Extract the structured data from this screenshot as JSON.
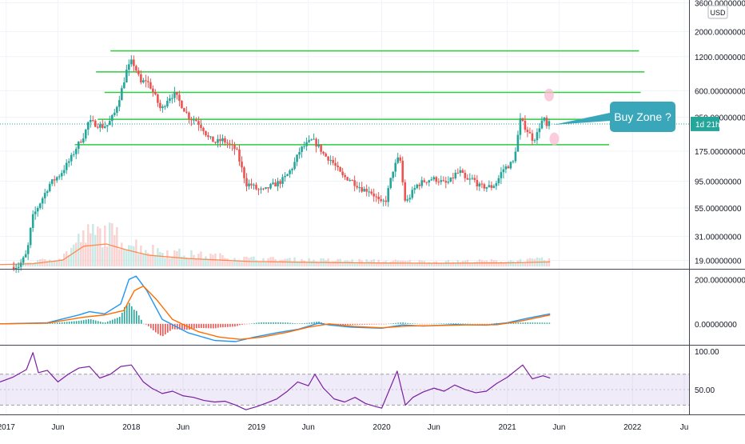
{
  "chart_data": [
    {
      "type": "candlestick",
      "panel": "price",
      "scale": "log",
      "currency_label": "USD",
      "countdown_badge": "1d 21h",
      "ylim": [
        16,
        3800
      ],
      "y_ticks": [
        "3600.00000000",
        "2000.00000000",
        "1200.00000000",
        "600.00000000",
        "350.00000000",
        "175.00000000",
        "95.00000000",
        "55.00000000",
        "31.00000000",
        "19.00000000"
      ],
      "y_tick_values": [
        3600,
        2000,
        1200,
        600,
        350,
        175,
        95,
        55,
        31,
        19
      ],
      "x_ticks": [
        "2017",
        "Jun",
        "2018",
        "Jun",
        "2019",
        "Jun",
        "2020",
        "Jun",
        "2021",
        "Jun",
        "2022",
        "Ju"
      ],
      "x_tick_dates": [
        "2017-01-01",
        "2017-06-01",
        "2018-01-01",
        "2018-06-01",
        "2019-01-01",
        "2019-06-01",
        "2020-01-01",
        "2020-06-01",
        "2021-01-01",
        "2021-06-01",
        "2022-01-01",
        "2022-06-01"
      ],
      "xlim": [
        "2016-12-14",
        "2022-06-15"
      ],
      "price_path": [
        [
          "2016-12-14",
          16
        ],
        [
          "2017-02-15",
          17
        ],
        [
          "2017-03-10",
          22
        ],
        [
          "2017-03-25",
          45
        ],
        [
          "2017-04-15",
          60
        ],
        [
          "2017-05-15",
          90
        ],
        [
          "2017-06-15",
          110
        ],
        [
          "2017-07-15",
          150
        ],
        [
          "2017-08-01",
          190
        ],
        [
          "2017-08-25",
          250
        ],
        [
          "2017-09-05",
          320
        ],
        [
          "2017-09-20",
          310
        ],
        [
          "2017-10-15",
          290
        ],
        [
          "2017-11-01",
          300
        ],
        [
          "2017-11-20",
          380
        ],
        [
          "2017-12-10",
          600
        ],
        [
          "2017-12-25",
          900
        ],
        [
          "2018-01-10",
          1100
        ],
        [
          "2018-01-20",
          950
        ],
        [
          "2018-02-05",
          700
        ],
        [
          "2018-02-20",
          750
        ],
        [
          "2018-03-05",
          650
        ],
        [
          "2018-03-20",
          520
        ],
        [
          "2018-04-05",
          400
        ],
        [
          "2018-04-25",
          520
        ],
        [
          "2018-05-15",
          560
        ],
        [
          "2018-06-05",
          440
        ],
        [
          "2018-06-25",
          350
        ],
        [
          "2018-07-15",
          330
        ],
        [
          "2018-08-05",
          280
        ],
        [
          "2018-08-20",
          230
        ],
        [
          "2018-09-10",
          210
        ],
        [
          "2018-10-01",
          220
        ],
        [
          "2018-10-20",
          200
        ],
        [
          "2018-11-10",
          180
        ],
        [
          "2018-11-25",
          125
        ],
        [
          "2018-12-10",
          90
        ],
        [
          "2018-12-25",
          88
        ],
        [
          "2019-01-10",
          80
        ],
        [
          "2019-01-30",
          78
        ],
        [
          "2019-02-15",
          85
        ],
        [
          "2019-03-05",
          90
        ],
        [
          "2019-03-20",
          95
        ],
        [
          "2019-04-05",
          105
        ],
        [
          "2019-04-25",
          130
        ],
        [
          "2019-05-15",
          180
        ],
        [
          "2019-06-01",
          200
        ],
        [
          "2019-06-20",
          220
        ],
        [
          "2019-07-10",
          190
        ],
        [
          "2019-07-25",
          160
        ],
        [
          "2019-08-10",
          150
        ],
        [
          "2019-08-25",
          130
        ],
        [
          "2019-09-15",
          105
        ],
        [
          "2019-10-05",
          100
        ],
        [
          "2019-10-25",
          90
        ],
        [
          "2019-11-15",
          80
        ],
        [
          "2019-12-01",
          80
        ],
        [
          "2019-12-20",
          70
        ],
        [
          "2020-01-05",
          60
        ],
        [
          "2020-01-20",
          65
        ],
        [
          "2020-02-10",
          120
        ],
        [
          "2020-02-25",
          150
        ],
        [
          "2020-03-05",
          140
        ],
        [
          "2020-03-12",
          68
        ],
        [
          "2020-03-20",
          62
        ],
        [
          "2020-04-05",
          75
        ],
        [
          "2020-04-20",
          88
        ],
        [
          "2020-05-10",
          95
        ],
        [
          "2020-06-01",
          100
        ],
        [
          "2020-06-20",
          98
        ],
        [
          "2020-07-10",
          90
        ],
        [
          "2020-07-25",
          95
        ],
        [
          "2020-08-10",
          110
        ],
        [
          "2020-08-25",
          115
        ],
        [
          "2020-09-10",
          95
        ],
        [
          "2020-09-30",
          100
        ],
        [
          "2020-10-20",
          85
        ],
        [
          "2020-11-10",
          85
        ],
        [
          "2020-11-25",
          85
        ],
        [
          "2020-12-10",
          95
        ],
        [
          "2020-12-25",
          120
        ],
        [
          "2021-01-10",
          130
        ],
        [
          "2021-01-25",
          140
        ],
        [
          "2021-02-05",
          210
        ],
        [
          "2021-02-15",
          330
        ],
        [
          "2021-02-25",
          300
        ],
        [
          "2021-03-10",
          260
        ],
        [
          "2021-03-25",
          220
        ],
        [
          "2021-04-05",
          250
        ],
        [
          "2021-04-15",
          310
        ],
        [
          "2021-04-25",
          340
        ],
        [
          "2021-05-02",
          280
        ],
        [
          "2021-05-06",
          305
        ]
      ],
      "horizontal_levels": [
        {
          "value": 1350,
          "from": "2017-11-01",
          "to": "2022-01-20"
        },
        {
          "value": 880,
          "from": "2017-09-20",
          "to": "2022-02-05"
        },
        {
          "value": 580,
          "from": "2017-10-15",
          "to": "2022-01-25"
        },
        {
          "value": 335,
          "from": "2017-09-25",
          "to": "2021-10-10"
        },
        {
          "value": 200,
          "from": "2017-07-20",
          "to": "2021-10-25"
        }
      ],
      "annotation": {
        "text": "Buy Zone ?",
        "points_to": [
          "2021-05-06",
          300
        ]
      },
      "highlight_ovals": [
        [
          "2021-05-03",
          550
        ],
        [
          "2021-05-18",
          225
        ]
      ],
      "volume_ma_path": [
        [
          "2016-12-14",
          0.08
        ],
        [
          "2017-03-20",
          0.12
        ],
        [
          "2017-06-15",
          0.28
        ],
        [
          "2017-08-15",
          0.9
        ],
        [
          "2017-10-20",
          1.0
        ],
        [
          "2017-12-15",
          0.75
        ],
        [
          "2018-02-20",
          0.5
        ],
        [
          "2018-06-15",
          0.35
        ],
        [
          "2018-12-15",
          0.22
        ],
        [
          "2019-06-15",
          0.18
        ],
        [
          "2020-01-15",
          0.15
        ],
        [
          "2020-06-15",
          0.14
        ],
        [
          "2021-01-15",
          0.16
        ],
        [
          "2021-05-06",
          0.2
        ]
      ]
    },
    {
      "type": "line",
      "panel": "macd",
      "y_ticks": [
        "200.00000000",
        "0.00000000"
      ],
      "y_tick_values": [
        200,
        0
      ],
      "ylim": [
        -80,
        230
      ],
      "series": [
        {
          "role": "macd",
          "color": "#2196f3",
          "path": [
            [
              "2016-12-14",
              0
            ],
            [
              "2017-05-01",
              5
            ],
            [
              "2017-08-01",
              40
            ],
            [
              "2017-09-01",
              55
            ],
            [
              "2017-10-15",
              45
            ],
            [
              "2017-12-01",
              90
            ],
            [
              "2017-12-25",
              200
            ],
            [
              "2018-01-15",
              215
            ],
            [
              "2018-02-15",
              150
            ],
            [
              "2018-04-01",
              20
            ],
            [
              "2018-06-15",
              -40
            ],
            [
              "2018-09-01",
              -75
            ],
            [
              "2018-11-01",
              -80
            ],
            [
              "2018-12-25",
              -60
            ],
            [
              "2019-03-01",
              -40
            ],
            [
              "2019-05-01",
              -25
            ],
            [
              "2019-07-01",
              3
            ],
            [
              "2019-08-01",
              -5
            ],
            [
              "2019-10-01",
              -15
            ],
            [
              "2020-01-01",
              -20
            ],
            [
              "2020-03-01",
              -5
            ],
            [
              "2020-05-01",
              -10
            ],
            [
              "2020-08-01",
              -3
            ],
            [
              "2020-11-01",
              -6
            ],
            [
              "2021-01-01",
              5
            ],
            [
              "2021-03-01",
              25
            ],
            [
              "2021-05-06",
              45
            ]
          ]
        },
        {
          "role": "signal",
          "color": "#ff6d00",
          "path": [
            [
              "2016-12-14",
              0
            ],
            [
              "2017-05-01",
              3
            ],
            [
              "2017-08-15",
              30
            ],
            [
              "2017-10-15",
              40
            ],
            [
              "2017-12-10",
              60
            ],
            [
              "2018-01-10",
              150
            ],
            [
              "2018-02-05",
              170
            ],
            [
              "2018-03-15",
              110
            ],
            [
              "2018-05-01",
              20
            ],
            [
              "2018-07-15",
              -35
            ],
            [
              "2018-09-15",
              -60
            ],
            [
              "2018-11-15",
              -70
            ],
            [
              "2019-01-15",
              -60
            ],
            [
              "2019-04-01",
              -38
            ],
            [
              "2019-06-01",
              -15
            ],
            [
              "2019-08-01",
              0
            ],
            [
              "2019-10-15",
              -12
            ],
            [
              "2020-01-01",
              -18
            ],
            [
              "2020-03-15",
              -10
            ],
            [
              "2020-06-01",
              -8
            ],
            [
              "2020-09-01",
              -5
            ],
            [
              "2020-12-01",
              -4
            ],
            [
              "2021-02-01",
              10
            ],
            [
              "2021-05-06",
              40
            ]
          ]
        }
      ]
    },
    {
      "type": "line",
      "panel": "rsi",
      "y_ticks": [
        "100.00",
        "50.00"
      ],
      "y_tick_values": [
        100,
        50
      ],
      "ylim": [
        20,
        105
      ],
      "bands": [
        70,
        30
      ],
      "series": [
        {
          "role": "rsi",
          "color": "#7b1fa2",
          "path": [
            [
              "2016-12-14",
              60
            ],
            [
              "2017-01-20",
              66
            ],
            [
              "2017-03-01",
              76
            ],
            [
              "2017-03-20",
              98
            ],
            [
              "2017-04-05",
              72
            ],
            [
              "2017-05-01",
              75
            ],
            [
              "2017-06-01",
              60
            ],
            [
              "2017-07-01",
              70
            ],
            [
              "2017-08-01",
              78
            ],
            [
              "2017-09-01",
              80
            ],
            [
              "2017-10-01",
              65
            ],
            [
              "2017-11-01",
              70
            ],
            [
              "2017-12-01",
              80
            ],
            [
              "2018-01-01",
              82
            ],
            [
              "2018-02-05",
              60
            ],
            [
              "2018-03-01",
              52
            ],
            [
              "2018-04-01",
              45
            ],
            [
              "2018-05-01",
              48
            ],
            [
              "2018-06-01",
              42
            ],
            [
              "2018-07-01",
              40
            ],
            [
              "2018-08-01",
              36
            ],
            [
              "2018-09-01",
              34
            ],
            [
              "2018-10-01",
              35
            ],
            [
              "2018-11-01",
              30
            ],
            [
              "2018-12-01",
              24
            ],
            [
              "2019-01-01",
              28
            ],
            [
              "2019-02-01",
              33
            ],
            [
              "2019-03-01",
              38
            ],
            [
              "2019-04-01",
              48
            ],
            [
              "2019-05-01",
              60
            ],
            [
              "2019-06-01",
              55
            ],
            [
              "2019-06-20",
              70
            ],
            [
              "2019-07-15",
              52
            ],
            [
              "2019-08-15",
              38
            ],
            [
              "2019-09-15",
              34
            ],
            [
              "2019-10-15",
              40
            ],
            [
              "2019-11-15",
              32
            ],
            [
              "2019-12-15",
              28
            ],
            [
              "2020-01-01",
              26
            ],
            [
              "2020-02-15",
              74
            ],
            [
              "2020-03-10",
              30
            ],
            [
              "2020-04-01",
              40
            ],
            [
              "2020-05-01",
              47
            ],
            [
              "2020-06-01",
              52
            ],
            [
              "2020-07-01",
              48
            ],
            [
              "2020-08-01",
              56
            ],
            [
              "2020-09-01",
              50
            ],
            [
              "2020-10-01",
              46
            ],
            [
              "2020-11-01",
              48
            ],
            [
              "2020-12-01",
              58
            ],
            [
              "2021-01-01",
              66
            ],
            [
              "2021-02-15",
              82
            ],
            [
              "2021-03-15",
              64
            ],
            [
              "2021-04-15",
              68
            ],
            [
              "2021-05-06",
              65
            ]
          ]
        }
      ]
    }
  ]
}
